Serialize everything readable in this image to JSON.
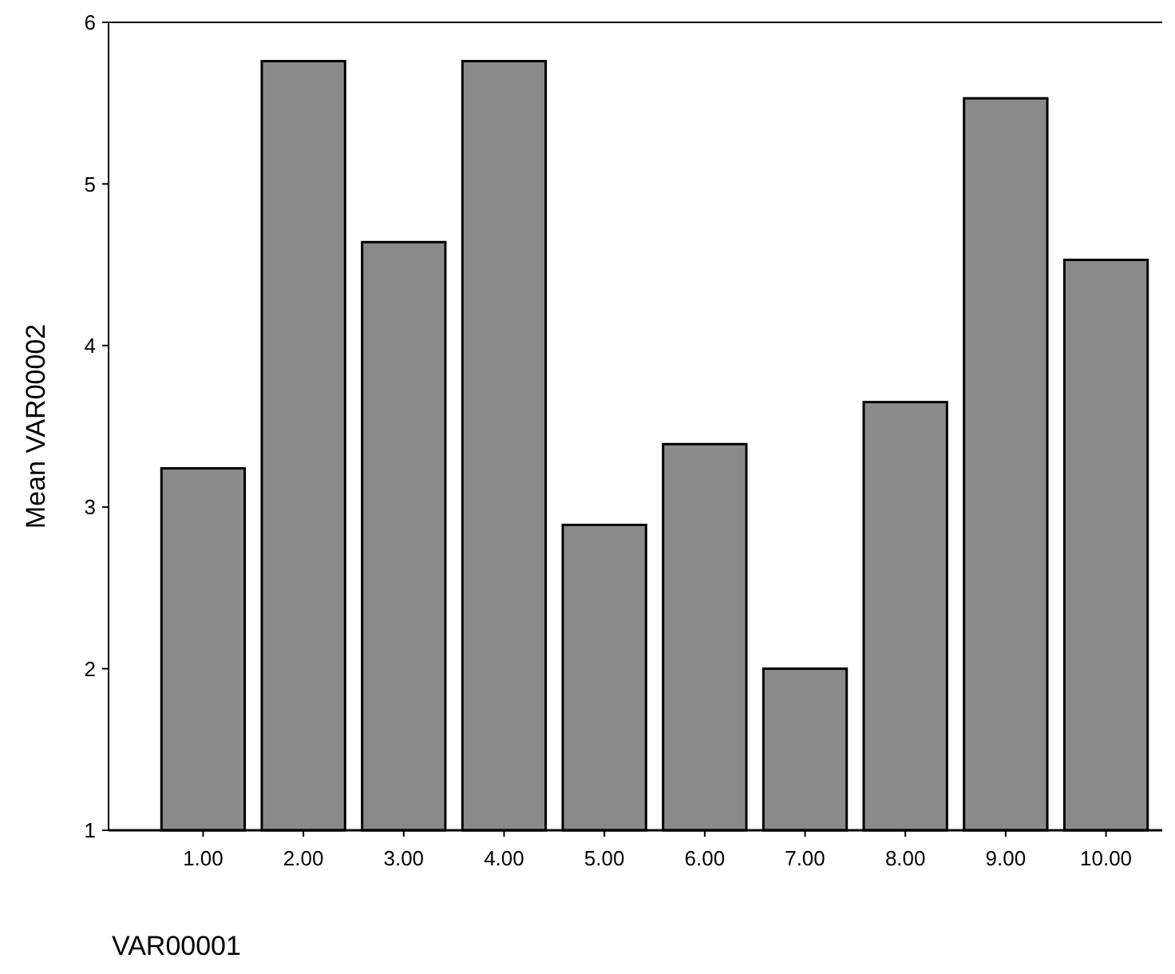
{
  "chart_data": {
    "type": "bar",
    "xlabel": "VAR00001",
    "ylabel": "Mean VAR00002",
    "categories": [
      "1.00",
      "2.00",
      "3.00",
      "4.00",
      "5.00",
      "6.00",
      "7.00",
      "8.00",
      "9.00",
      "10.00"
    ],
    "values": [
      3.24,
      5.76,
      4.64,
      5.76,
      2.89,
      3.39,
      2.0,
      3.65,
      5.53,
      4.53
    ],
    "color": "#8a8a8a",
    "ylim": [
      1,
      6
    ],
    "yticks": [
      1,
      2,
      3,
      4,
      5,
      6
    ],
    "grid": false
  }
}
